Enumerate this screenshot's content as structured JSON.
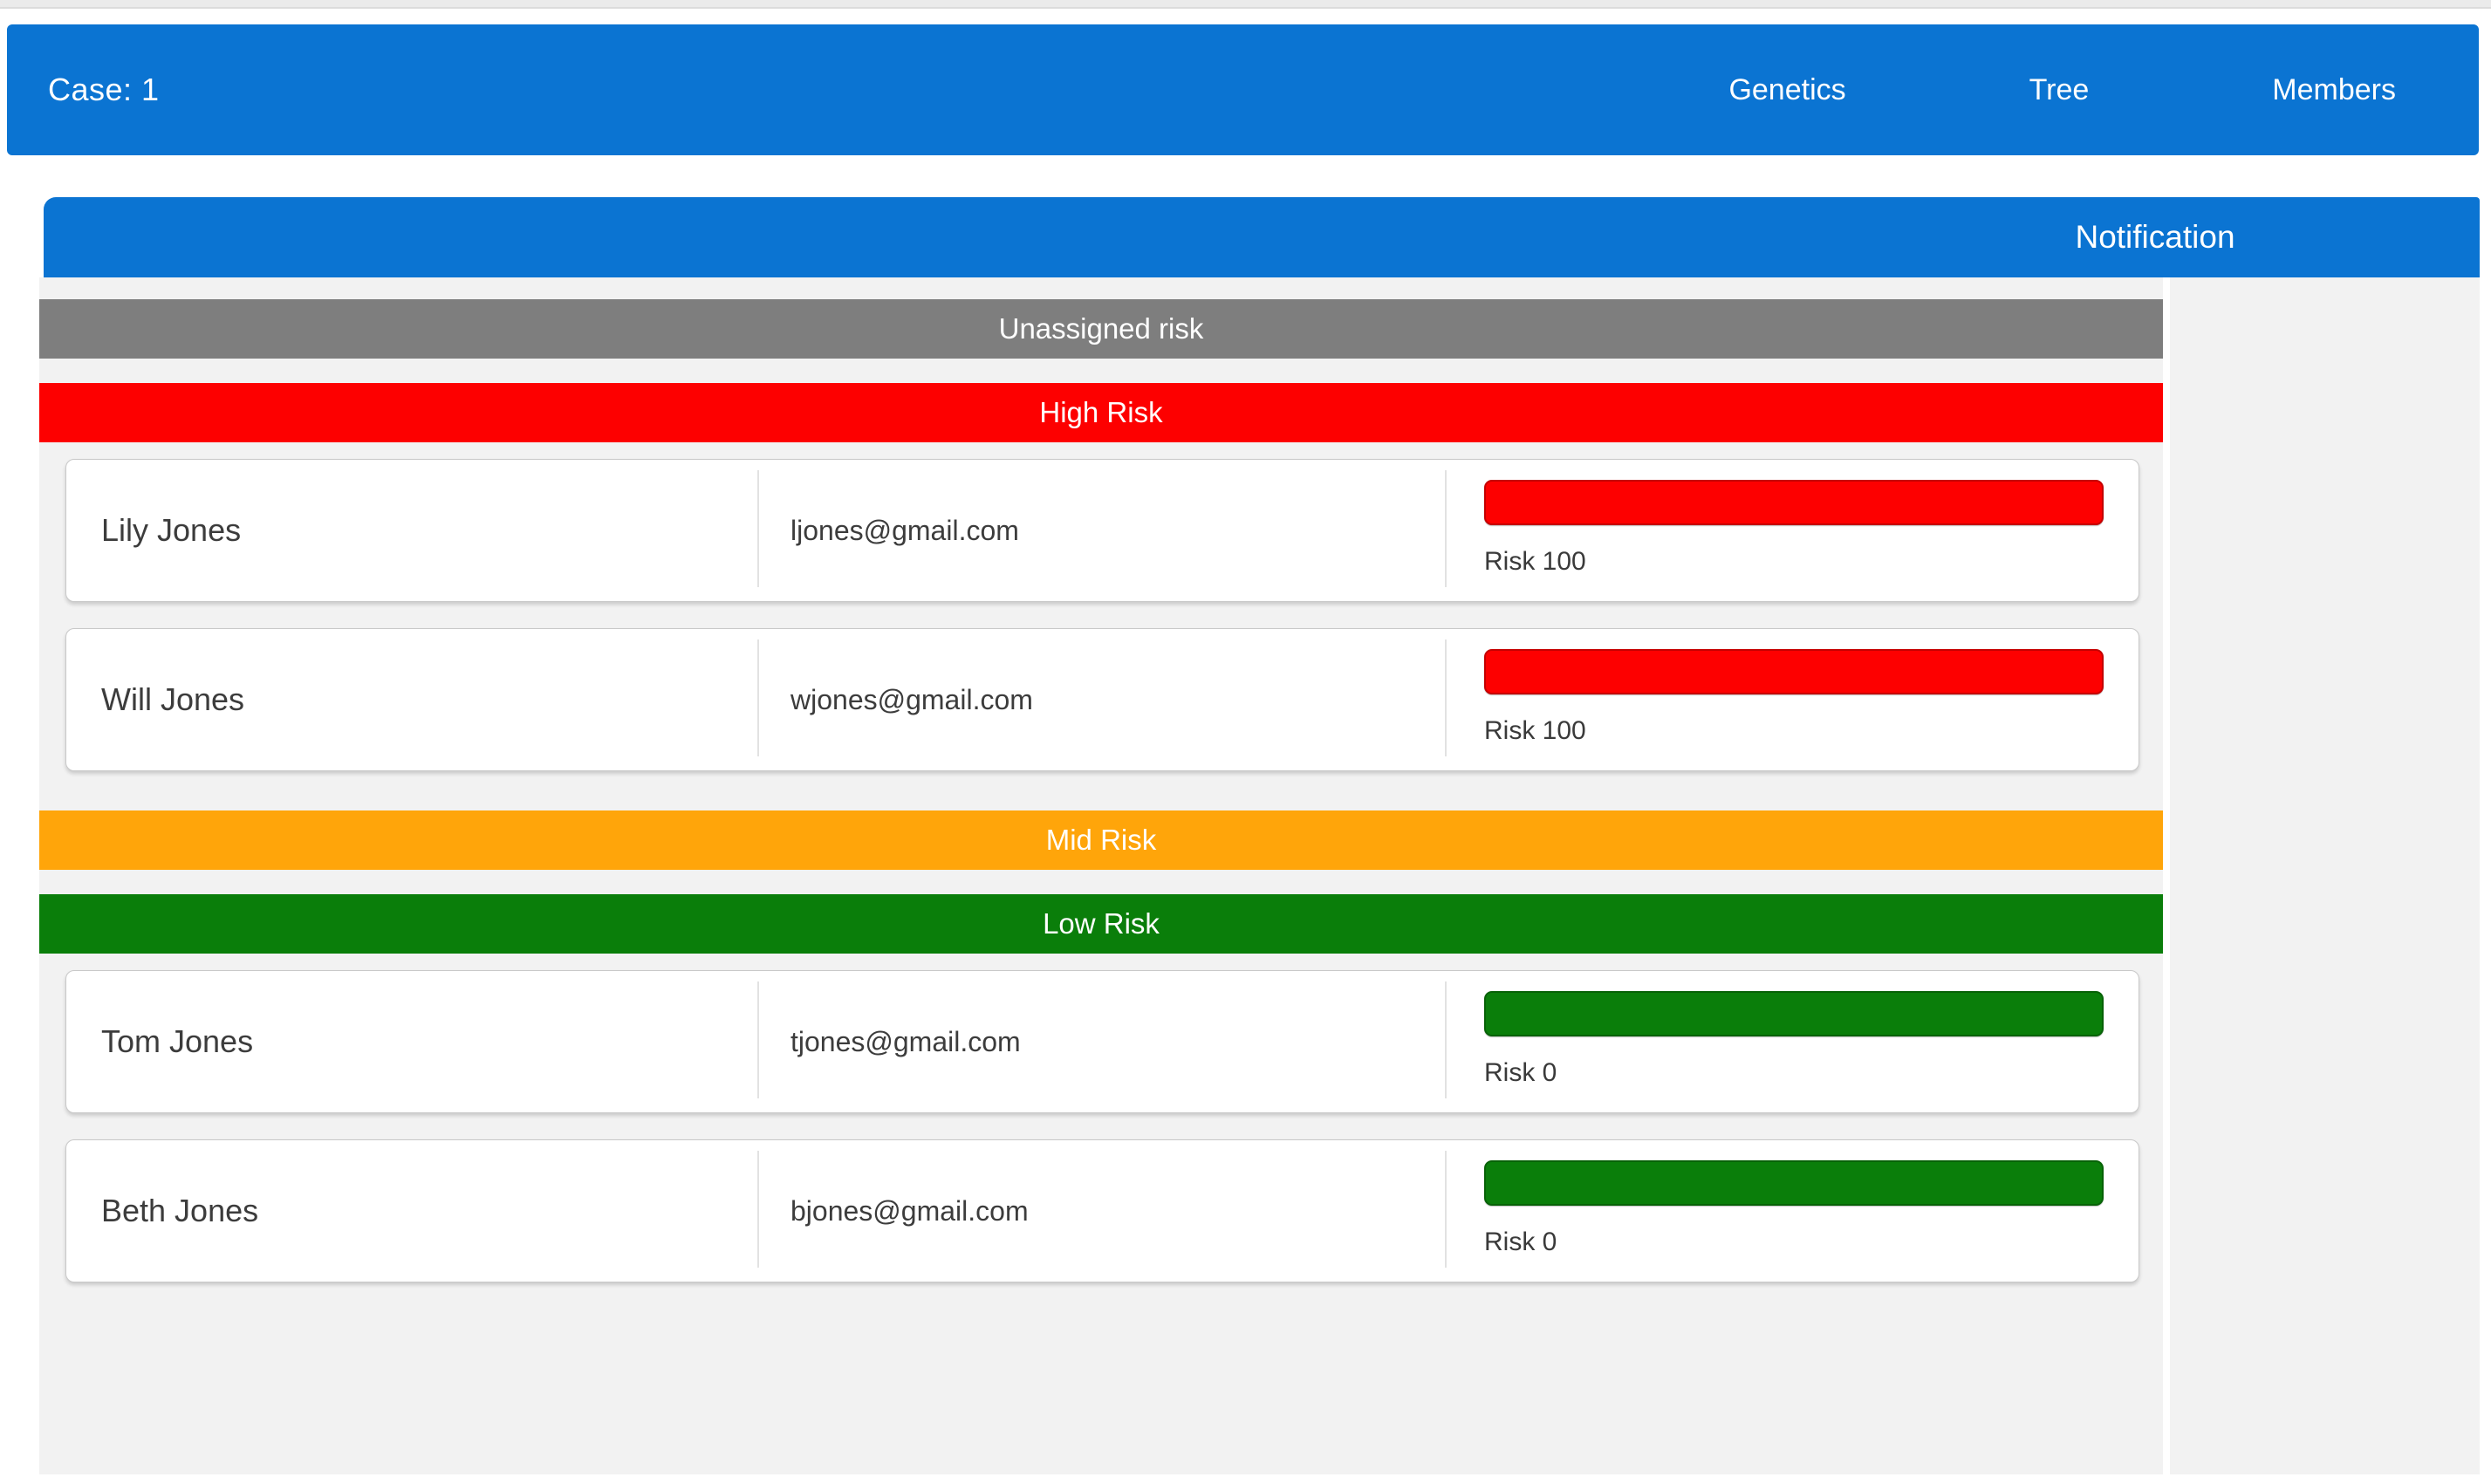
{
  "navbar": {
    "case_label": "Case: 1",
    "items": [
      {
        "id": "genetics",
        "label": "Genetics"
      },
      {
        "id": "tree",
        "label": "Tree"
      },
      {
        "id": "members",
        "label": "Members"
      }
    ]
  },
  "notification": {
    "title": "Notification"
  },
  "sections": [
    {
      "id": "unassigned",
      "label": "Unassigned risk",
      "color": "#7e7e7e",
      "members": []
    },
    {
      "id": "high",
      "label": "High Risk",
      "color": "#fd0000",
      "members": [
        {
          "name": "Lily Jones",
          "email": "ljones@gmail.com",
          "risk_label": "Risk 100",
          "risk_value": 100,
          "risk_color": "#fd0000"
        },
        {
          "name": "Will Jones",
          "email": "wjones@gmail.com",
          "risk_label": "Risk 100",
          "risk_value": 100,
          "risk_color": "#fd0000"
        }
      ]
    },
    {
      "id": "mid",
      "label": "Mid Risk",
      "color": "#ffa50a",
      "members": []
    },
    {
      "id": "low",
      "label": "Low Risk",
      "color": "#0a7e0a",
      "members": [
        {
          "name": "Tom Jones",
          "email": "tjones@gmail.com",
          "risk_label": "Risk 0",
          "risk_value": 0,
          "risk_color": "#0a7e0a"
        },
        {
          "name": "Beth Jones",
          "email": "bjones@gmail.com",
          "risk_label": "Risk 0",
          "risk_value": 0,
          "risk_color": "#0a7e0a"
        }
      ]
    }
  ],
  "colors": {
    "primary_blue": "#0b74d2",
    "unassigned_gray": "#7e7e7e",
    "high_risk_red": "#fd0000",
    "mid_risk_orange": "#ffa50a",
    "low_risk_green": "#0a7e0a",
    "panel_background": "#f2f2f2",
    "card_background": "#ffffff",
    "header_text": "#ffffff",
    "body_text": "#3c3c3c"
  }
}
